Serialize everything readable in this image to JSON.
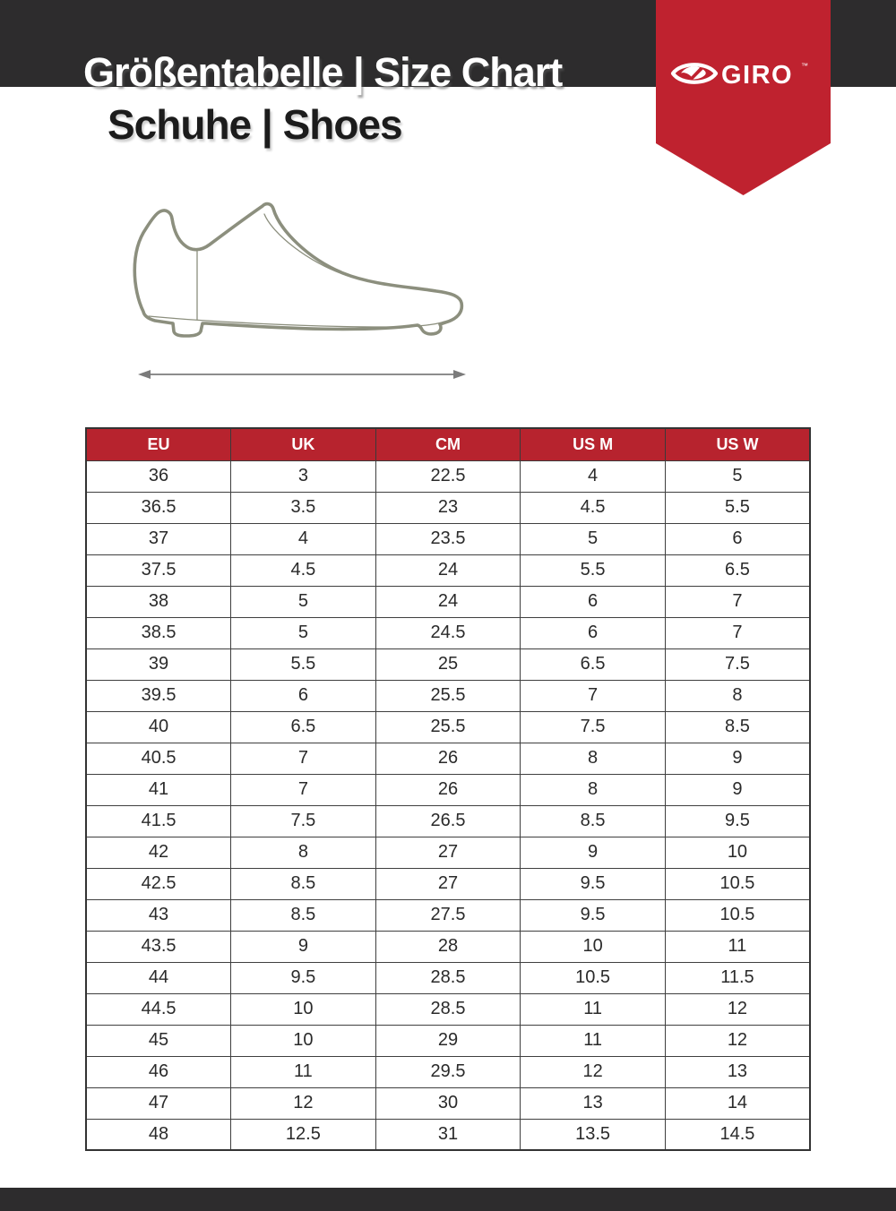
{
  "page": {
    "title": "Größentabelle | Size Chart",
    "subtitle": "Schuhe | Shoes"
  },
  "brand": {
    "name": "GIRO",
    "trademark": "™"
  },
  "colors": {
    "accent_red_ribbon": "#bf222f",
    "accent_red_table_header": "#b7232e",
    "dark_bar": "#2d2c2d",
    "shoe_outline": "#8c8f7e",
    "arrow_gray": "#7b7b7b"
  },
  "icons": {
    "brand_mark": "giro-eye-logo-icon",
    "diagram": "cycling-shoe-outline",
    "measure": "length-double-arrow"
  },
  "size_table": {
    "columns": [
      "EU",
      "UK",
      "CM",
      "US M",
      "US W"
    ],
    "rows": [
      [
        "36",
        "3",
        "22.5",
        "4",
        "5"
      ],
      [
        "36.5",
        "3.5",
        "23",
        "4.5",
        "5.5"
      ],
      [
        "37",
        "4",
        "23.5",
        "5",
        "6"
      ],
      [
        "37.5",
        "4.5",
        "24",
        "5.5",
        "6.5"
      ],
      [
        "38",
        "5",
        "24",
        "6",
        "7"
      ],
      [
        "38.5",
        "5",
        "24.5",
        "6",
        "7"
      ],
      [
        "39",
        "5.5",
        "25",
        "6.5",
        "7.5"
      ],
      [
        "39.5",
        "6",
        "25.5",
        "7",
        "8"
      ],
      [
        "40",
        "6.5",
        "25.5",
        "7.5",
        "8.5"
      ],
      [
        "40.5",
        "7",
        "26",
        "8",
        "9"
      ],
      [
        "41",
        "7",
        "26",
        "8",
        "9"
      ],
      [
        "41.5",
        "7.5",
        "26.5",
        "8.5",
        "9.5"
      ],
      [
        "42",
        "8",
        "27",
        "9",
        "10"
      ],
      [
        "42.5",
        "8.5",
        "27",
        "9.5",
        "10.5"
      ],
      [
        "43",
        "8.5",
        "27.5",
        "9.5",
        "10.5"
      ],
      [
        "43.5",
        "9",
        "28",
        "10",
        "11"
      ],
      [
        "44",
        "9.5",
        "28.5",
        "10.5",
        "11.5"
      ],
      [
        "44.5",
        "10",
        "28.5",
        "11",
        "12"
      ],
      [
        "45",
        "10",
        "29",
        "11",
        "12"
      ],
      [
        "46",
        "11",
        "29.5",
        "12",
        "13"
      ],
      [
        "47",
        "12",
        "30",
        "13",
        "14"
      ],
      [
        "48",
        "12.5",
        "31",
        "13.5",
        "14.5"
      ]
    ]
  }
}
